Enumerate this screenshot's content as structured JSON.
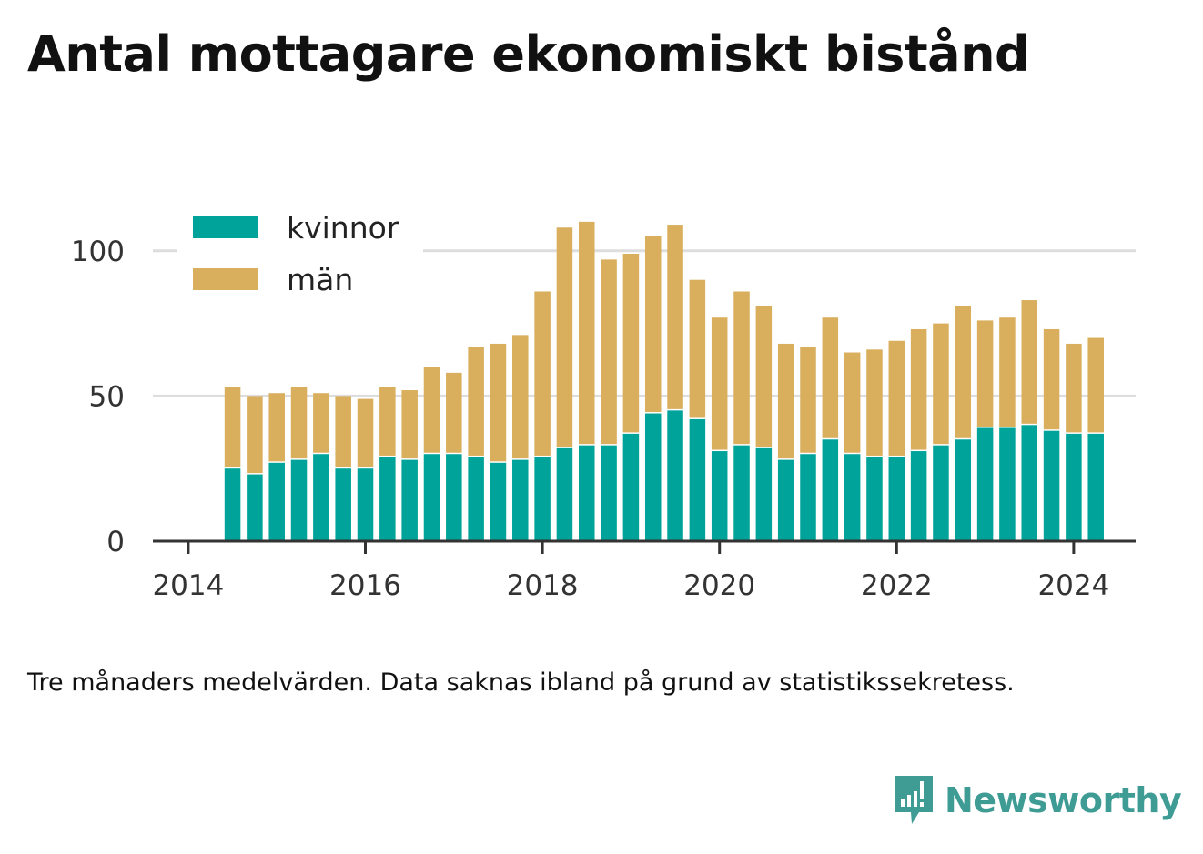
{
  "title": "Antal mottagare ekonomiskt bistånd",
  "note": "Tre månaders medelvärden. Data saknas ibland på grund av statistikssekretess.",
  "brand": {
    "name": "Newsworthy",
    "icon": "newsworthy-chart-bubble-icon",
    "color": "#3f9c95"
  },
  "chart_data": {
    "type": "bar",
    "stacked": true,
    "grid": true,
    "legend_position": "top-left",
    "x_ticks": [
      "2014",
      "2016",
      "2018",
      "2020",
      "2022",
      "2024"
    ],
    "x_range": [
      2013.6,
      2024.7
    ],
    "y_ticks": [
      0,
      50,
      100
    ],
    "ylim": [
      0,
      125
    ],
    "x": [
      2014.5,
      2014.75,
      2015.0,
      2015.25,
      2015.5,
      2015.75,
      2016.0,
      2016.25,
      2016.5,
      2016.75,
      2017.0,
      2017.25,
      2017.5,
      2017.75,
      2018.0,
      2018.25,
      2018.5,
      2018.75,
      2019.0,
      2019.25,
      2019.5,
      2019.75,
      2020.0,
      2020.25,
      2020.5,
      2020.75,
      2021.0,
      2021.25,
      2021.5,
      2021.75,
      2022.0,
      2022.25,
      2022.5,
      2022.75,
      2023.0,
      2023.25,
      2023.5,
      2023.75,
      2024.0,
      2024.25
    ],
    "series": [
      {
        "name": "kvinnor",
        "color": "#00a399",
        "values": [
          25,
          23,
          27,
          28,
          30,
          25,
          25,
          29,
          28,
          30,
          30,
          29,
          27,
          28,
          29,
          32,
          33,
          33,
          37,
          44,
          45,
          42,
          31,
          33,
          32,
          28,
          30,
          35,
          30,
          29,
          29,
          31,
          33,
          35,
          39,
          39,
          40,
          38,
          37,
          37
        ]
      },
      {
        "name": "män",
        "color": "#d9ae5c",
        "values": [
          28,
          27,
          24,
          25,
          21,
          25,
          24,
          24,
          24,
          30,
          28,
          38,
          41,
          43,
          57,
          76,
          77,
          64,
          62,
          61,
          64,
          48,
          46,
          53,
          49,
          40,
          37,
          42,
          35,
          37,
          40,
          42,
          42,
          46,
          37,
          38,
          43,
          35,
          31,
          33
        ]
      }
    ]
  }
}
